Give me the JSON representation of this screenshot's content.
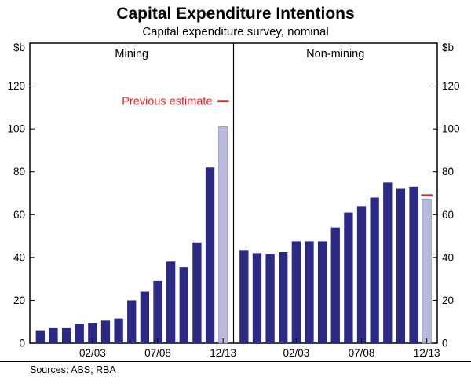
{
  "header": {
    "title": "Capital Expenditure Intentions",
    "subtitle": "Capital expenditure survey, nominal"
  },
  "footer": {
    "sources": "Sources: ABS; RBA"
  },
  "chart_data": {
    "type": "bar",
    "title": "Capital Expenditure Intentions",
    "subtitle": "Capital expenditure survey, nominal",
    "unit_label": "$b",
    "ylim": [
      0,
      140
    ],
    "yticks": [
      0,
      20,
      40,
      60,
      80,
      100,
      120
    ],
    "x_tick_labels": [
      "02/03",
      "07/08",
      "12/13"
    ],
    "x_tick_indices": [
      4,
      9,
      14
    ],
    "bars_per_panel": 15,
    "annotation_label": "Previous estimate",
    "legend_note": "light bar = latest estimate, red dash = previous estimate",
    "panels": [
      {
        "label": "Mining",
        "values": [
          6,
          7,
          7,
          9,
          9.5,
          10.5,
          11.5,
          20,
          24,
          29,
          38,
          35.5,
          47,
          82
        ],
        "latest_estimate": 101,
        "previous_estimate": 113
      },
      {
        "label": "Non-mining",
        "values": [
          43.5,
          42,
          41.5,
          42.5,
          47.5,
          47.5,
          47.5,
          54,
          61,
          64,
          68,
          75,
          72,
          73
        ],
        "latest_estimate": 67,
        "previous_estimate": 69
      }
    ],
    "colors": {
      "bar": "#2a2a84",
      "latest_bar": "#b9b9dc",
      "marker": "#e02828",
      "annotation": "#e02828",
      "axis": "#000000"
    }
  }
}
